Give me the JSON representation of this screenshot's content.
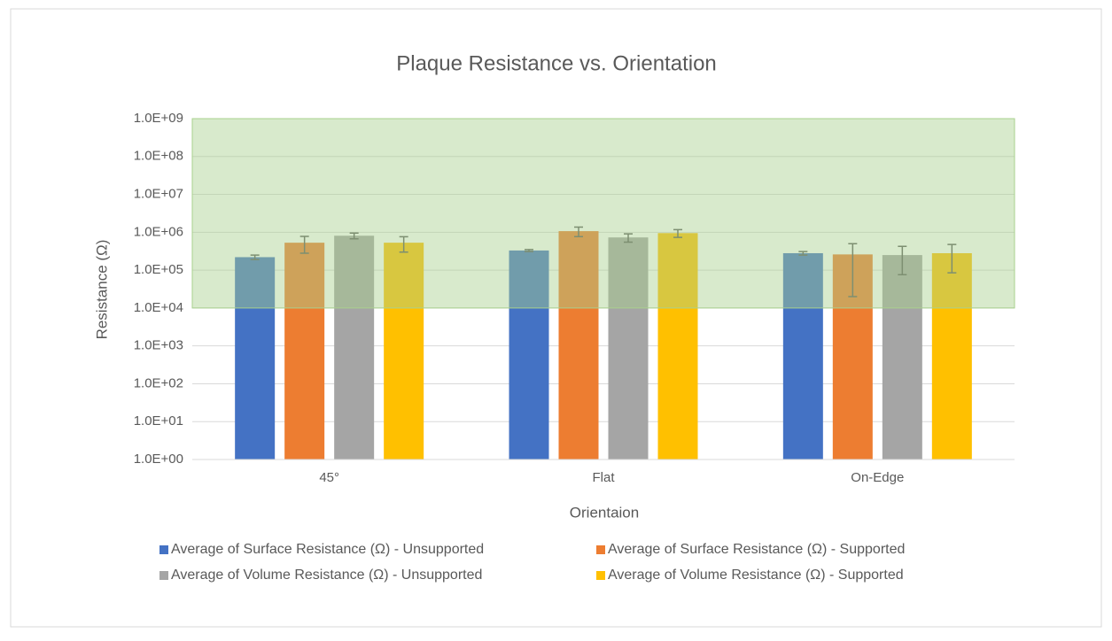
{
  "chart_data": {
    "type": "bar",
    "title": "Plaque Resistance vs. Orientation",
    "x_label": "Orientaion",
    "y_label": "Resistance (Ω)",
    "categories": [
      "45°",
      "Flat",
      "On-Edge"
    ],
    "series": [
      {
        "name": "Average of Surface Resistance (Ω) - Unsupported",
        "color": "#4472c4",
        "values": [
          220000,
          330000,
          280000
        ],
        "errors": [
          30000,
          20000,
          30000
        ]
      },
      {
        "name": "Average of Surface Resistance (Ω) - Supported",
        "color": "#ed7d31",
        "values": [
          530000,
          1070000,
          260000
        ],
        "errors": [
          250000,
          300000,
          240000
        ]
      },
      {
        "name": "Average of Volume Resistance (Ω) - Unsupported",
        "color": "#a5a5a5",
        "values": [
          810000,
          730000,
          250000
        ],
        "errors": [
          140000,
          180000,
          174000
        ]
      },
      {
        "name": "Average of Volume Resistance (Ω) - Supported",
        "color": "#ffc000",
        "values": [
          530000,
          950000,
          280000
        ],
        "errors": [
          230000,
          220000,
          195000
        ]
      }
    ],
    "log_scale": true,
    "ylim": [
      1,
      1000000000
    ],
    "yticks": [
      {
        "value": 1,
        "label": "1.0E+00"
      },
      {
        "value": 10,
        "label": "1.0E+01"
      },
      {
        "value": 100,
        "label": "1.0E+02"
      },
      {
        "value": 1000,
        "label": "1.0E+03"
      },
      {
        "value": 10000,
        "label": "1.0E+04"
      },
      {
        "value": 100000,
        "label": "1.0E+05"
      },
      {
        "value": 1000000,
        "label": "1.0E+06"
      },
      {
        "value": 10000000,
        "label": "1.0E+07"
      },
      {
        "value": 100000000,
        "label": "1.0E+08"
      },
      {
        "value": 1000000000,
        "label": "1.0E+09"
      }
    ],
    "grid": true,
    "shaded_band": {
      "range": [
        10000,
        1000000000
      ],
      "color": "#a9d18e"
    },
    "legend": "bottom"
  }
}
